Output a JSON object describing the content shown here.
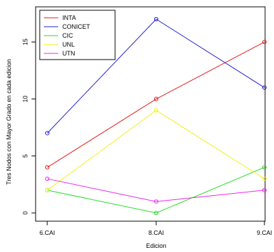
{
  "chart_data": {
    "type": "line",
    "x": [
      "6.CAI",
      "8.CAI",
      "9.CAI"
    ],
    "xlabel": "Edicion",
    "ylabel": "Tres Nodos con Mayor Grado en cada edicion",
    "ylim": [
      0,
      17
    ],
    "yticks": [
      0,
      5,
      10,
      15
    ],
    "legend_position": "top-left",
    "marker": "open-circle",
    "series": [
      {
        "name": "INTA",
        "color": "#e41a1c",
        "values": [
          4,
          10,
          15
        ]
      },
      {
        "name": "CONICET",
        "color": "#1f1fd6",
        "values": [
          7,
          17,
          11
        ]
      },
      {
        "name": "CIC",
        "color": "#22dd22",
        "values": [
          2,
          0,
          4
        ]
      },
      {
        "name": "UNL",
        "color": "#f2ef1a",
        "values": [
          2,
          9,
          3
        ]
      },
      {
        "name": "UTN",
        "color": "#ee22ee",
        "values": [
          3,
          1,
          2
        ]
      }
    ]
  }
}
